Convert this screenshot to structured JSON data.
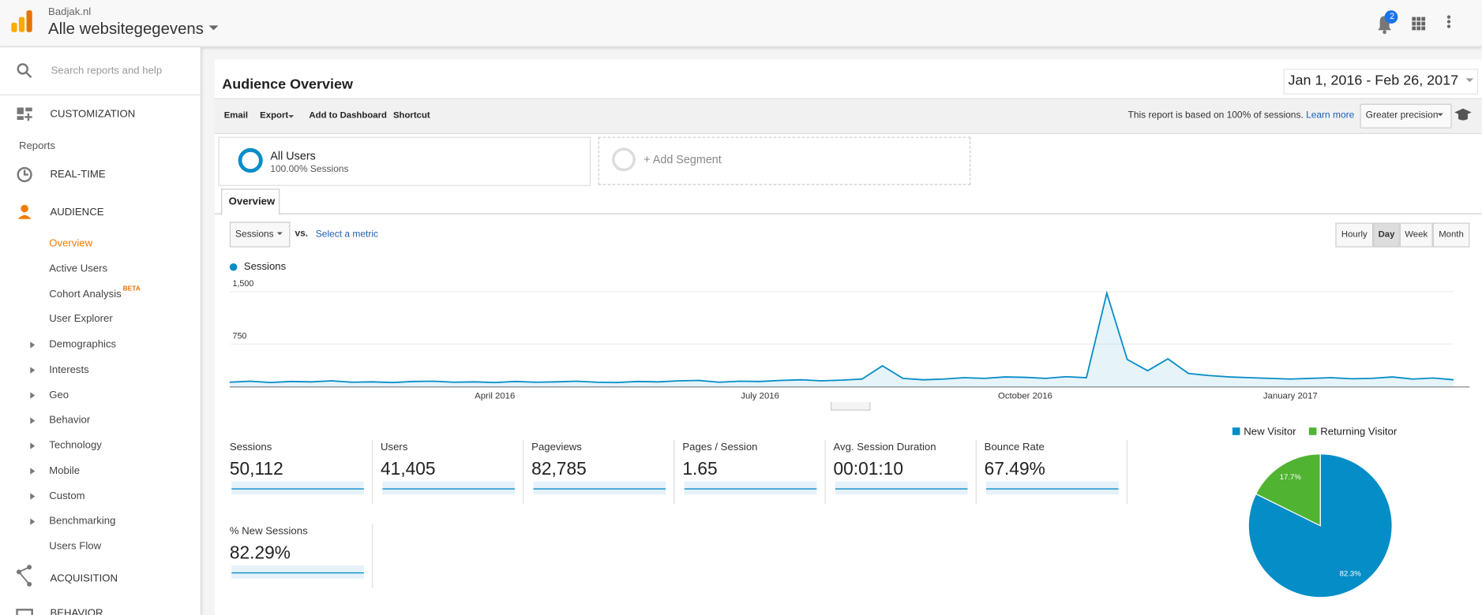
{
  "header": {
    "account": "Badjak.nl",
    "property": "Alle websitegegevens",
    "notifications": "2"
  },
  "sidebar": {
    "search": "Search reports and help",
    "customization": "CUSTOMIZATION",
    "reports": "Reports",
    "realtime": "REAL-TIME",
    "audience": "AUDIENCE",
    "audience_items": [
      "Overview",
      "Active Users",
      "Cohort Analysis",
      "User Explorer",
      "Demographics",
      "Interests",
      "Geo",
      "Behavior",
      "Technology",
      "Mobile",
      "Custom",
      "Benchmarking",
      "Users Flow"
    ],
    "beta": "BETA",
    "acquisition": "ACQUISITION",
    "behavior": "BEHAVIOR"
  },
  "report": {
    "title": "Audience Overview",
    "date_range": "Jan 1, 2016 - Feb 26, 2017",
    "toolbar": [
      "Email",
      "Export",
      "Add to Dashboard",
      "Shortcut"
    ],
    "sampling": "This report is based on 100% of sessions.",
    "learn_more": "Learn more",
    "precision": "Greater precision",
    "segment": {
      "name": "All Users",
      "detail": "100.00% Sessions"
    },
    "add_segment": "+ Add Segment",
    "tab": "Overview",
    "metric": "Sessions",
    "vs": "vs.",
    "select_metric": "Select a metric",
    "granularity": [
      "Hourly",
      "Day",
      "Week",
      "Month"
    ],
    "metrics": [
      {
        "label": "Sessions",
        "value": "50,112"
      },
      {
        "label": "Users",
        "value": "41,405"
      },
      {
        "label": "Pageviews",
        "value": "82,785"
      },
      {
        "label": "Pages / Session",
        "value": "1.65"
      },
      {
        "label": "Avg. Session Duration",
        "value": "00:01:10"
      },
      {
        "label": "Bounce Rate",
        "value": "67.49%"
      },
      {
        "label": "% New Sessions",
        "value": "82.29%"
      }
    ]
  },
  "chart_data": [
    {
      "type": "line",
      "categories": [
        null,
        null,
        null,
        null,
        null,
        null,
        null,
        null,
        null,
        null,
        null,
        null,
        null,
        "April 2016",
        null,
        null,
        null,
        null,
        null,
        null,
        null,
        null,
        null,
        null,
        null,
        null,
        "July 2016",
        null,
        null,
        null,
        null,
        null,
        null,
        null,
        null,
        null,
        null,
        null,
        null,
        "October 2016",
        null,
        null,
        null,
        null,
        null,
        null,
        null,
        null,
        null,
        null,
        null,
        null,
        "January 2017",
        null,
        null,
        null,
        null,
        null,
        null,
        null,
        null
      ],
      "series": [
        {
          "name": "Sessions",
          "color": "#058dc7",
          "values": [
            95,
            110,
            90,
            105,
            100,
            115,
            95,
            100,
            90,
            105,
            110,
            95,
            100,
            90,
            105,
            95,
            100,
            110,
            95,
            90,
            105,
            100,
            115,
            120,
            95,
            110,
            105,
            120,
            130,
            115,
            125,
            140,
            330,
            150,
            130,
            140,
            160,
            150,
            170,
            165,
            150,
            175,
            160,
            1370,
            420,
            260,
            430,
            220,
            190,
            170,
            160,
            150,
            140,
            150,
            160,
            145,
            150,
            170,
            140,
            155,
            130
          ]
        }
      ],
      "ylim": [
        0,
        1500
      ],
      "yticks": [
        750,
        {
          "value": 1500,
          "label": "1,500"
        }
      ],
      "grid": true
    },
    {
      "type": "pie",
      "categories": [
        "New Visitor",
        "Returning Visitor"
      ],
      "values": [
        82.3,
        17.7
      ],
      "value_labels": [
        "82.3%",
        "17.7%"
      ],
      "colors": [
        "#058dc7",
        "#50b432"
      ]
    }
  ]
}
